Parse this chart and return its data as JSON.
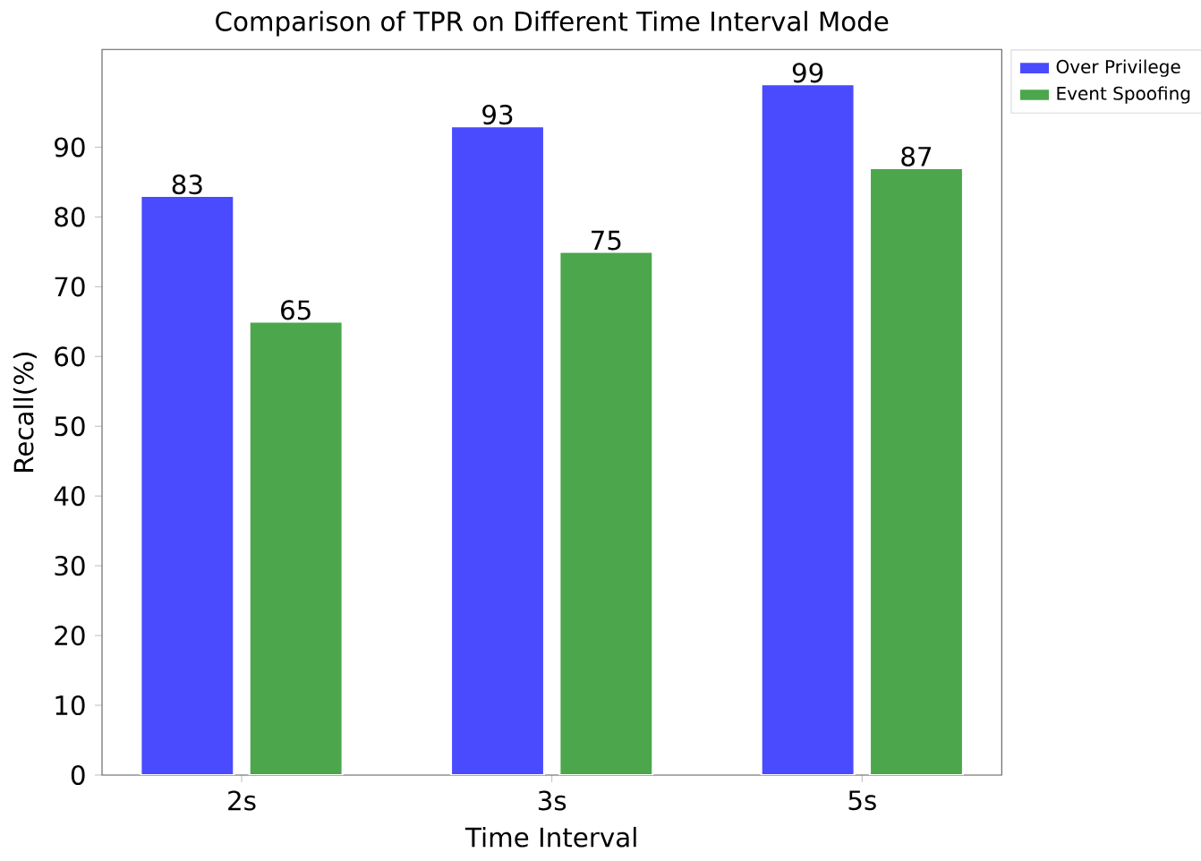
{
  "chart_data": {
    "type": "bar",
    "title": "Comparison of TPR on Different Time Interval Mode",
    "xlabel": "Time Interval",
    "ylabel": "Recall(%)",
    "categories": [
      "2s",
      "3s",
      "5s"
    ],
    "series": [
      {
        "name": "Over Privilege",
        "color": "#4a4aff",
        "values": [
          83,
          93,
          99
        ]
      },
      {
        "name": "Event Spoofing",
        "color": "#4ca64c",
        "values": [
          65,
          75,
          87
        ]
      }
    ],
    "ylim": [
      0,
      104
    ],
    "yticks": [
      0,
      10,
      20,
      30,
      40,
      50,
      60,
      70,
      80,
      90
    ],
    "data_labels": true,
    "legend": "top right",
    "grid": false
  }
}
